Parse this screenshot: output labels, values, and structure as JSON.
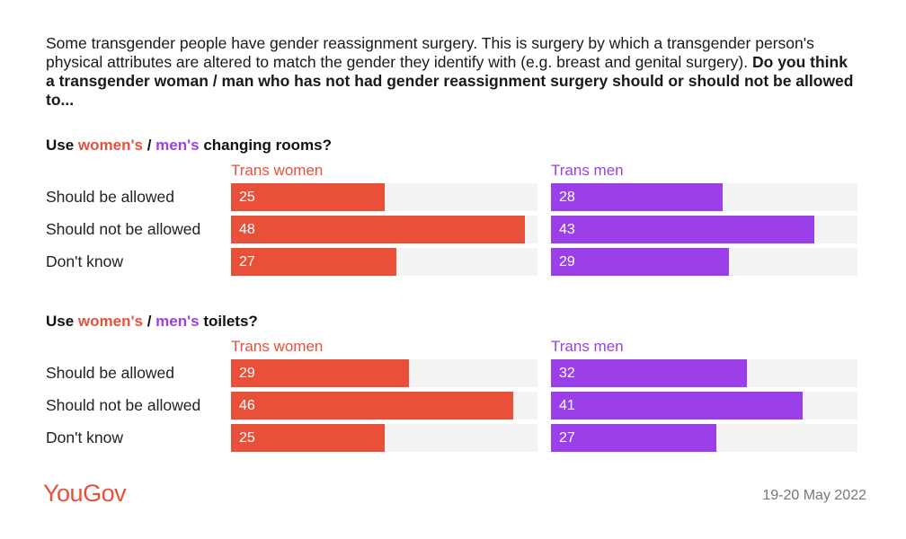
{
  "intro": {
    "text": "Some transgender people have gender reassignment surgery. This is surgery by which a transgender person's physical attributes are altered to match the gender they identify with (e.g. breast and genital surgery).",
    "question": "Do you think a transgender woman / man who has not had gender reassignment surgery should or should not be allowed to..."
  },
  "colors": {
    "women": "#e9503a",
    "men": "#9b3fe8",
    "track": "#f3f3f3"
  },
  "footer": {
    "logo": "YouGov",
    "date": "19-20 May 2022"
  },
  "chart_data": {
    "type": "bar",
    "orientation": "horizontal",
    "xlim": [
      0,
      50
    ],
    "categories": [
      "Should be allowed",
      "Should not be allowed",
      "Don't know"
    ],
    "panels": [
      {
        "title_prefix": "Use ",
        "title_women": "women's",
        "title_sep": " / ",
        "title_men": "men's",
        "title_suffix": " changing rooms?",
        "series": [
          {
            "name": "Trans women",
            "values": [
              25,
              48,
              27
            ]
          },
          {
            "name": "Trans men",
            "values": [
              28,
              43,
              29
            ]
          }
        ]
      },
      {
        "title_prefix": "Use ",
        "title_women": "women's",
        "title_sep": " / ",
        "title_men": "men's",
        "title_suffix": " toilets?",
        "series": [
          {
            "name": "Trans women",
            "values": [
              29,
              46,
              25
            ]
          },
          {
            "name": "Trans men",
            "values": [
              32,
              41,
              27
            ]
          }
        ]
      }
    ]
  }
}
